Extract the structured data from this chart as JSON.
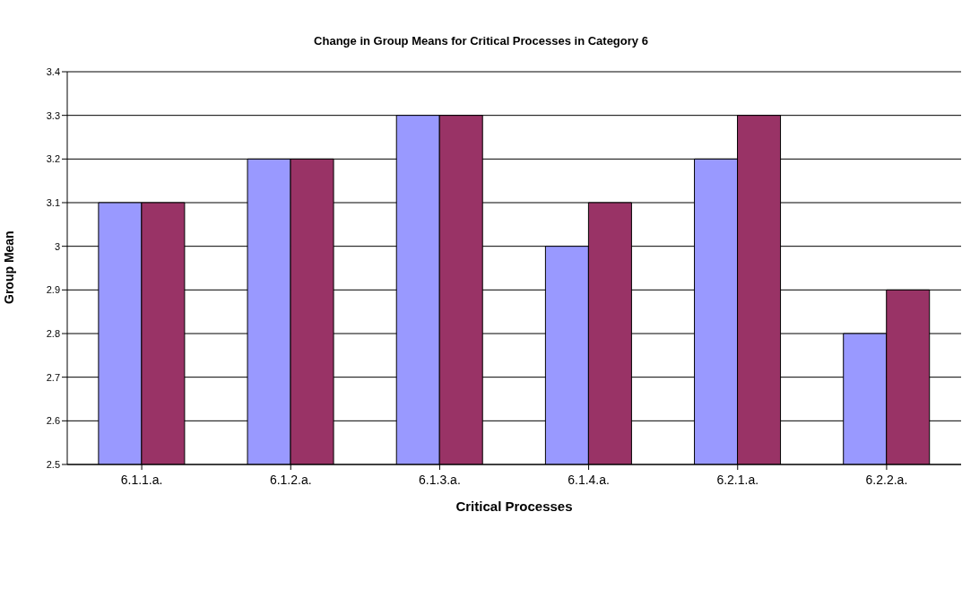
{
  "chart_data": {
    "type": "bar",
    "title": "Change in Group Means for Critical Processes in Category 6",
    "xlabel": "Critical Processes",
    "ylabel": "Group Mean",
    "categories": [
      "6.1.1.a.",
      "6.1.2.a.",
      "6.1.3.a.",
      "6.1.4.a.",
      "6.2.1.a.",
      "6.2.2.a."
    ],
    "series": [
      {
        "color": "#9999ff",
        "values": [
          3.1,
          3.2,
          3.3,
          3.0,
          3.2,
          2.8
        ]
      },
      {
        "color": "#993366",
        "values": [
          3.1,
          3.2,
          3.3,
          3.1,
          3.3,
          2.9
        ]
      }
    ],
    "ylim": [
      2.5,
      3.4
    ],
    "yticks": [
      2.5,
      2.6,
      2.7,
      2.8,
      2.9,
      3,
      3.1,
      3.2,
      3.3,
      3.4
    ],
    "grid": "y",
    "legend": false
  }
}
